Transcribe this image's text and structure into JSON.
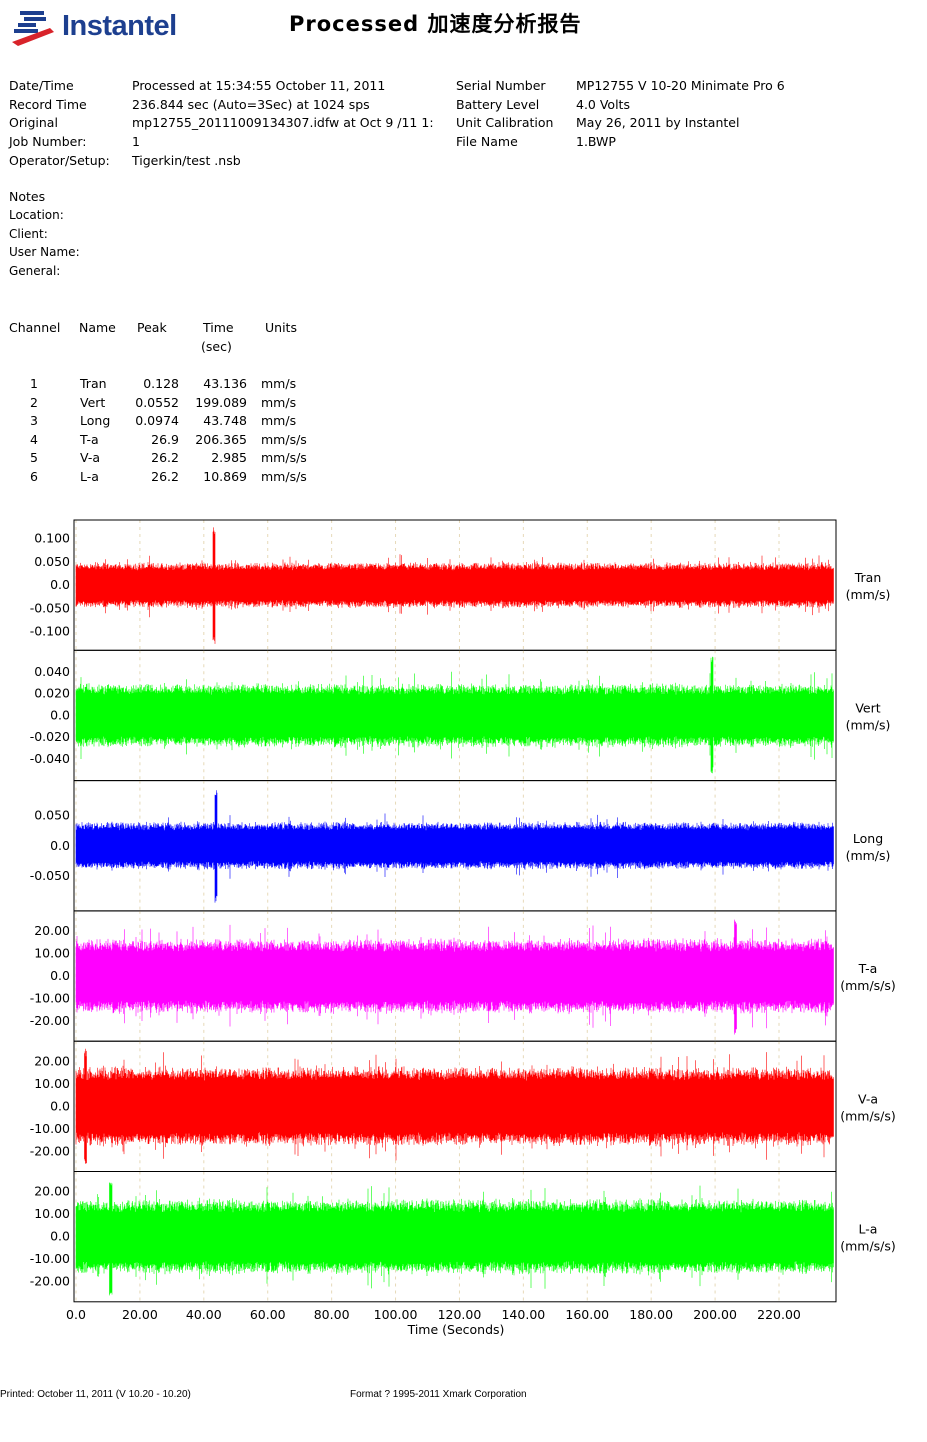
{
  "header": {
    "brand": "Instantel",
    "title": "Processed 加速度分析报告"
  },
  "info_left": [
    {
      "label": "Date/Time",
      "value": "Processed at 15:34:55 October 11, 2011"
    },
    {
      "label": "Record Time",
      "value": "236.844 sec (Auto=3Sec) at 1024 sps"
    },
    {
      "label": "Original",
      "value": "mp12755_20111009134307.idfw at Oct 9 /11 1:"
    },
    {
      "label": "Job Number:",
      "value": "1"
    },
    {
      "label": "Operator/Setup:",
      "value": "Tigerkin/test .nsb"
    }
  ],
  "info_right": [
    {
      "label": "Serial Number",
      "value": "MP12755 V 10-20 Minimate Pro 6"
    },
    {
      "label": "Battery Level",
      "value": "4.0 Volts"
    },
    {
      "label": "Unit Calibration",
      "value": "May 26, 2011 by Instantel"
    },
    {
      "label": "File Name",
      "value": "1.BWP"
    }
  ],
  "notes": {
    "heading": "Notes",
    "fields": [
      "Location:",
      "Client:",
      "User Name:",
      "General:"
    ]
  },
  "channel_table": {
    "headers": [
      "Channel",
      "Name",
      "Peak",
      "Time",
      "Units"
    ],
    "time_sub": "(sec)",
    "rows": [
      [
        "1",
        "Tran",
        "0.128",
        "43.136",
        "mm/s"
      ],
      [
        "2",
        "Vert",
        "0.0552",
        "199.089",
        "mm/s"
      ],
      [
        "3",
        "Long",
        "0.0974",
        "43.748",
        "mm/s"
      ],
      [
        "4",
        "T-a",
        "26.9",
        "206.365",
        "mm/s/s"
      ],
      [
        "5",
        "V-a",
        "26.2",
        "2.985",
        "mm/s/s"
      ],
      [
        "6",
        "L-a",
        "26.2",
        "10.869",
        "mm/s/s"
      ]
    ]
  },
  "chart_data": {
    "type": "line",
    "xlabel": "Time (Seconds)",
    "xlim": [
      0,
      236.844
    ],
    "xticks": [
      "0.0",
      "20.00",
      "40.00",
      "60.00",
      "80.00",
      "100.00",
      "120.00",
      "140.00",
      "160.00",
      "180.00",
      "200.00",
      "220.00"
    ],
    "grid": true,
    "series": [
      {
        "name": "Tran",
        "unit": "(mm/s)",
        "color": "#ff0000",
        "peak": 0.128,
        "peak_time": 43.136,
        "ylim": [
          -0.14,
          0.14
        ],
        "yticks": [
          [
            "0.100",
            0.1
          ],
          [
            "0.050",
            0.05
          ],
          [
            "0.0",
            0
          ],
          [
            "-0.050",
            -0.05
          ],
          [
            "-0.100",
            -0.1
          ]
        ]
      },
      {
        "name": "Vert",
        "unit": "(mm/s)",
        "color": "#00ff00",
        "peak": 0.0552,
        "peak_time": 199.089,
        "ylim": [
          -0.06,
          0.06
        ],
        "yticks": [
          [
            "0.040",
            0.04
          ],
          [
            "0.020",
            0.02
          ],
          [
            "0.0",
            0
          ],
          [
            "-0.020",
            -0.02
          ],
          [
            "-0.040",
            -0.04
          ]
        ]
      },
      {
        "name": "Long",
        "unit": "(mm/s)",
        "color": "#0000ff",
        "peak": 0.0974,
        "peak_time": 43.748,
        "ylim": [
          -0.108,
          0.108
        ],
        "yticks": [
          [
            "0.050",
            0.05
          ],
          [
            "0.0",
            0
          ],
          [
            "-0.050",
            -0.05
          ]
        ]
      },
      {
        "name": "T-a",
        "unit": "(mm/s/s)",
        "color": "#ff00ff",
        "peak": 26.9,
        "peak_time": 206.365,
        "ylim": [
          -29,
          29
        ],
        "yticks": [
          [
            "20.00",
            20
          ],
          [
            "10.00",
            10
          ],
          [
            "0.0",
            0
          ],
          [
            "-10.00",
            -10
          ],
          [
            "-20.00",
            -20
          ]
        ]
      },
      {
        "name": "V-a",
        "unit": "(mm/s/s)",
        "color": "#ff0000",
        "peak": 26.2,
        "peak_time": 2.985,
        "ylim": [
          -29,
          29
        ],
        "yticks": [
          [
            "20.00",
            20
          ],
          [
            "10.00",
            10
          ],
          [
            "0.0",
            0
          ],
          [
            "-10.00",
            -10
          ],
          [
            "-20.00",
            -20
          ]
        ]
      },
      {
        "name": "L-a",
        "unit": "(mm/s/s)",
        "color": "#00ff00",
        "peak": 26.2,
        "peak_time": 10.869,
        "ylim": [
          -29,
          29
        ],
        "yticks": [
          [
            "20.00",
            20
          ],
          [
            "10.00",
            10
          ],
          [
            "0.0",
            0
          ],
          [
            "-10.00",
            -10
          ],
          [
            "-20.00",
            -20
          ]
        ]
      }
    ]
  },
  "footer": {
    "printed": "Printed: October 11, 2011 (V 10.20 - 10.20)",
    "format": "Format ? 1995-2011 Xmark Corporation"
  }
}
